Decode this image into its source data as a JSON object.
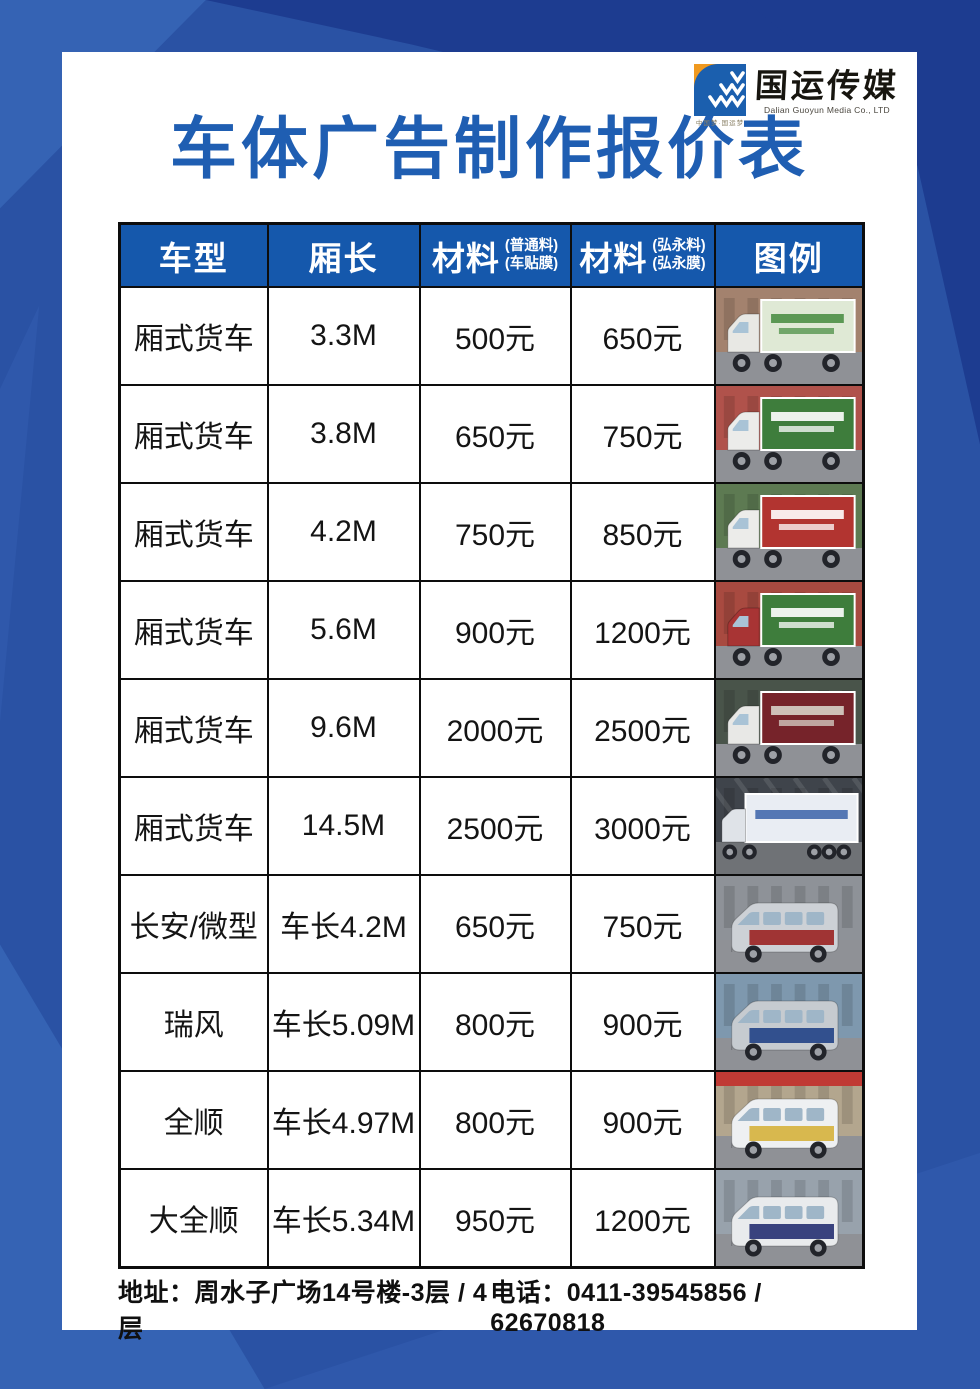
{
  "title": "车体广告制作报价表",
  "logo": {
    "name_cn": "国运传媒",
    "name_en": "Dalian Guoyun Media Co., LTD",
    "tagline": "中国梦·国运梦"
  },
  "table": {
    "columns": [
      {
        "label": "车型"
      },
      {
        "label": "厢长"
      },
      {
        "label": "材料",
        "subs": [
          "(普通料)",
          "(车贴膜)"
        ]
      },
      {
        "label": "材料",
        "subs": [
          "(弘永料)",
          "(弘永膜)"
        ]
      },
      {
        "label": "图例"
      }
    ],
    "rows": [
      {
        "type": "厢式货车",
        "length": "3.3M",
        "price_common": "500元",
        "price_hongyong": "650元",
        "photo": {
          "vehicle": "box",
          "desc": "白色厢式货车，白绿色广告画面，街边楼房背景",
          "bg": "#a3826e",
          "cab": "#e8e8e4",
          "ad": "#dfe9d5",
          "ad_bar": "#4c8f46"
        }
      },
      {
        "type": "厢式货车",
        "length": "3.8M",
        "price_common": "650元",
        "price_hongyong": "750元",
        "photo": {
          "vehicle": "box",
          "desc": "白色厢式货车，绿色广告画面（就用千年舟），红色门市背景",
          "bg": "#b0524b",
          "cab": "#ececea",
          "ad": "#3e7d3c",
          "ad_bar": "#ffffff"
        }
      },
      {
        "type": "厢式货车",
        "length": "4.2M",
        "price_common": "750元",
        "price_hongyong": "850元",
        "photo": {
          "vehicle": "box",
          "desc": "白色厢式货车，红色广告画面（三泰），绿色门市背景",
          "bg": "#5d7a52",
          "cab": "#ececea",
          "ad": "#b23430",
          "ad_bar": "#ffffff"
        }
      },
      {
        "type": "厢式货车",
        "length": "5.6M",
        "price_common": "900元",
        "price_hongyong": "1200元",
        "photo": {
          "vehicle": "box",
          "desc": "红色驾驶室厢式货车，绿色广告画面，红色牌匾背景",
          "bg": "#a84a40",
          "cab": "#a83434",
          "ad": "#3e7d3c",
          "ad_bar": "#ffffff"
        }
      },
      {
        "type": "厢式货车",
        "length": "9.6M",
        "price_common": "2000元",
        "price_hongyong": "2500元",
        "photo": {
          "vehicle": "box",
          "desc": "白色驾驶室大货车，深红色广告画面（物流），树木背景",
          "bg": "#49544a",
          "cab": "#e8e8e6",
          "ad": "#76232a",
          "ad_bar": "#d8d2c8"
        }
      },
      {
        "type": "厢式货车",
        "length": "14.5M",
        "price_common": "2500元",
        "price_hongyong": "3000元",
        "photo": {
          "vehicle": "semi",
          "desc": "高架桥下的半挂长厢货车，浅色车厢蓝红字广告",
          "bg": "#3f444b",
          "road": "#6f7276",
          "cab": "#dfe3e8",
          "ad": "#e9edf3",
          "ad_bar": "#3a62a8"
        }
      },
      {
        "type": "长安/微型",
        "length": "车长4.2M",
        "price_common": "650元",
        "price_hongyong": "750元",
        "photo": {
          "vehicle": "van",
          "desc": "银色微型面包车，侧面红色广告画面",
          "bg": "#8e9298",
          "body": "#cdd1d6",
          "ad": "#a03434"
        }
      },
      {
        "type": "瑞风",
        "length": "车长5.09M",
        "price_common": "800元",
        "price_hongyong": "900元",
        "photo": {
          "vehicle": "van",
          "desc": "银色瑞风商务车，侧面蓝色广告画面",
          "bg": "#7e98ae",
          "body": "#c6cbd0",
          "ad": "#32508e"
        }
      },
      {
        "type": "全顺",
        "length": "车长4.97M",
        "price_common": "800元",
        "price_hongyong": "900元",
        "photo": {
          "vehicle": "van",
          "desc": "白色全顺车，黄蓝广告画面，上方红色条幅",
          "bg": "#b3a68e",
          "banner": "#c03a34",
          "body": "#eef0f2",
          "ad": "#d8b84e"
        }
      },
      {
        "type": "大全顺",
        "length": "车长5.34M",
        "price_common": "950元",
        "price_hongyong": "1200元",
        "photo": {
          "vehicle": "van",
          "desc": "白色大全顺车，深蓝色广告画面（以旧换新 免费改稿 服务升级）",
          "bg": "#98a2ac",
          "body": "#e9ebed",
          "ad": "#39427e"
        }
      }
    ]
  },
  "footer": {
    "address": "地址：周水子广场14号楼-3层 / 4层",
    "phone": "电话：0411-39545856 / 62670818"
  },
  "colors": {
    "header_bg": "#1558ac",
    "title_blue": "#1f5eb2",
    "frame_base": "#2a52a4",
    "frame_dark": "#1d3c90",
    "frame_mid": "#2f58ab",
    "frame_light": "#3563b4",
    "logo_blue": "#1b5fae",
    "logo_orange": "#f0991f"
  }
}
